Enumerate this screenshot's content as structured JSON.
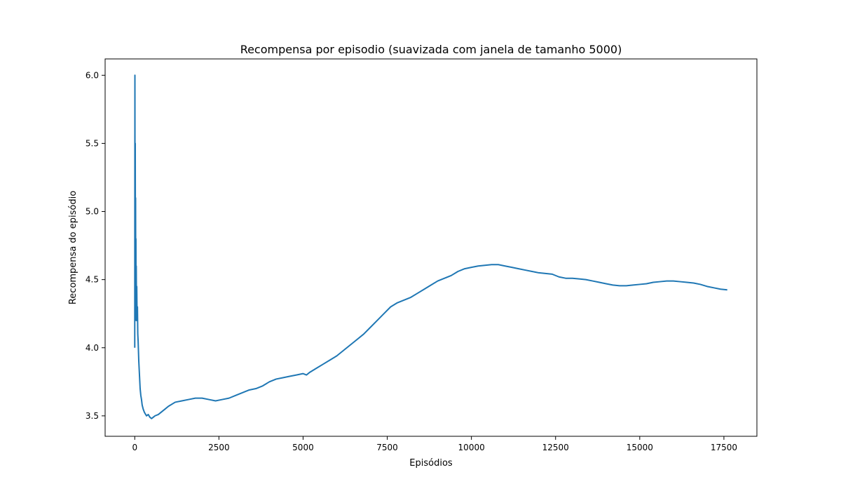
{
  "chart_data": {
    "type": "line",
    "title": "Recompensa por episodio (suavizada com janela de tamanho 5000)",
    "xlabel": "Episódios",
    "ylabel": "Recompensa do episódio",
    "xlim": [
      -880,
      18480
    ],
    "ylim": [
      3.35,
      6.12
    ],
    "xticks": [
      0,
      2500,
      5000,
      7500,
      10000,
      12500,
      15000,
      17500
    ],
    "xtick_labels": [
      "0",
      "2500",
      "5000",
      "7500",
      "10000",
      "12500",
      "15000",
      "17500"
    ],
    "yticks": [
      3.5,
      4.0,
      4.5,
      5.0,
      5.5,
      6.0
    ],
    "ytick_labels": [
      "3.5",
      "4.0",
      "4.5",
      "5.0",
      "5.5",
      "6.0"
    ],
    "grid": false,
    "series": [
      {
        "color": "#1f77b4",
        "x": [
          0,
          5,
          10,
          15,
          20,
          25,
          30,
          35,
          40,
          45,
          50,
          60,
          70,
          80,
          90,
          100,
          120,
          140,
          160,
          180,
          200,
          220,
          250,
          280,
          300,
          350,
          400,
          450,
          500,
          550,
          600,
          700,
          800,
          900,
          1000,
          1200,
          1400,
          1600,
          1800,
          2000,
          2200,
          2400,
          2600,
          2800,
          3000,
          3200,
          3400,
          3600,
          3800,
          4000,
          4200,
          4400,
          4600,
          4800,
          5000,
          5100,
          5200,
          5400,
          5600,
          5800,
          6000,
          6200,
          6400,
          6600,
          6800,
          7000,
          7200,
          7400,
          7600,
          7800,
          8000,
          8200,
          8400,
          8600,
          8800,
          9000,
          9200,
          9400,
          9600,
          9800,
          10000,
          10200,
          10400,
          10600,
          10800,
          11000,
          11200,
          11400,
          11600,
          11800,
          12000,
          12200,
          12400,
          12600,
          12800,
          13000,
          13200,
          13400,
          13600,
          13800,
          14000,
          14200,
          14400,
          14600,
          14800,
          15000,
          15200,
          15400,
          15600,
          15800,
          16000,
          16200,
          16400,
          16600,
          16800,
          17000,
          17200,
          17400,
          17600
        ],
        "y": [
          4.0,
          6.0,
          4.3,
          5.5,
          4.5,
          5.1,
          4.25,
          4.8,
          4.2,
          4.6,
          4.35,
          4.45,
          4.2,
          4.3,
          4.1,
          4.05,
          3.9,
          3.8,
          3.7,
          3.65,
          3.62,
          3.58,
          3.55,
          3.53,
          3.52,
          3.5,
          3.51,
          3.49,
          3.48,
          3.49,
          3.5,
          3.51,
          3.53,
          3.55,
          3.57,
          3.6,
          3.61,
          3.62,
          3.63,
          3.63,
          3.62,
          3.61,
          3.62,
          3.63,
          3.65,
          3.67,
          3.69,
          3.7,
          3.72,
          3.75,
          3.77,
          3.78,
          3.79,
          3.8,
          3.81,
          3.8,
          3.82,
          3.85,
          3.88,
          3.91,
          3.94,
          3.98,
          4.02,
          4.06,
          4.1,
          4.15,
          4.2,
          4.25,
          4.3,
          4.33,
          4.35,
          4.37,
          4.4,
          4.43,
          4.46,
          4.49,
          4.51,
          4.53,
          4.56,
          4.58,
          4.59,
          4.6,
          4.605,
          4.61,
          4.61,
          4.6,
          4.59,
          4.58,
          4.57,
          4.56,
          4.55,
          4.545,
          4.54,
          4.52,
          4.51,
          4.51,
          4.505,
          4.5,
          4.49,
          4.48,
          4.47,
          4.46,
          4.455,
          4.455,
          4.46,
          4.465,
          4.47,
          4.48,
          4.485,
          4.49,
          4.49,
          4.485,
          4.48,
          4.475,
          4.465,
          4.45,
          4.44,
          4.43,
          4.425
        ]
      }
    ]
  }
}
